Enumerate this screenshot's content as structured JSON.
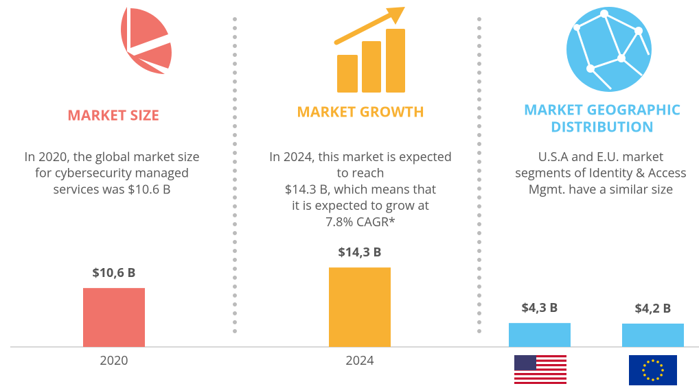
{
  "panels": [
    {
      "title": [
        "MARKET SIZE"
      ],
      "color": "#f0736a",
      "text": [
        "In 2020, the global market size",
        "for cybersecurity managed",
        "services was $10.6 B"
      ]
    },
    {
      "title": [
        "MARKET GROWTH"
      ],
      "color": "#f8b133",
      "text": [
        "In 2024, this market is expected",
        "to reach",
        "$14.3 B, which means that",
        "it is expected to grow at",
        "7.8% CAGR*"
      ]
    },
    {
      "title": [
        "MARKET GEOGRAPHIC",
        "DISTRIBUTION"
      ],
      "color": "#5bc4f1",
      "text": [
        "U.S.A and E.U. market",
        "segments of Identity & Access",
        "Mgmt. have a similar size"
      ]
    }
  ],
  "chart_data": {
    "type": "bar",
    "categories": [
      "2020",
      "2024",
      null,
      null
    ],
    "values": [
      10.6,
      14.3,
      4.3,
      4.2
    ],
    "value_labels": [
      "$10,6 B",
      "$14,3 B",
      "$4,3 B",
      "$4,2 B"
    ],
    "colors": [
      "#f0736a",
      "#f8b133",
      "#5bc4f1",
      "#5bc4f1"
    ]
  }
}
